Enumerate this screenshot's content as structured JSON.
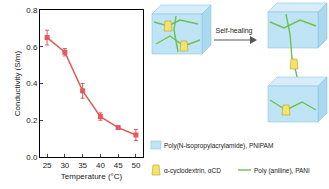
{
  "chart_data": {
    "type": "line",
    "x": [
      25,
      30,
      35,
      40,
      45,
      50
    ],
    "values": [
      0.65,
      0.57,
      0.36,
      0.22,
      0.16,
      0.12
    ],
    "errors": [
      0.04,
      0.02,
      0.04,
      0.02,
      0.01,
      0.03
    ],
    "color": "#e05a5a",
    "marker": "square",
    "line_style": "solid",
    "xlabel": "Temperature (°C)",
    "ylabel": "Conductivity (S/m)",
    "xlim": [
      23,
      52
    ],
    "xticks": [
      25,
      30,
      35,
      40,
      45,
      50
    ],
    "ylim": [
      0,
      0.8
    ],
    "yticks": [
      {
        "value": 0,
        "label": "0.0"
      },
      0.2,
      0.4,
      0.6,
      0.8
    ],
    "grid": false
  },
  "diagram": {
    "arrow_label": "Self-healing",
    "legend": [
      {
        "label": "Poly(N-isopropylacrylamide), PNIPAM"
      },
      {
        "label": "α-cyclodextrin, αCD"
      },
      {
        "label": "Poly (aniline), PANI"
      }
    ]
  }
}
